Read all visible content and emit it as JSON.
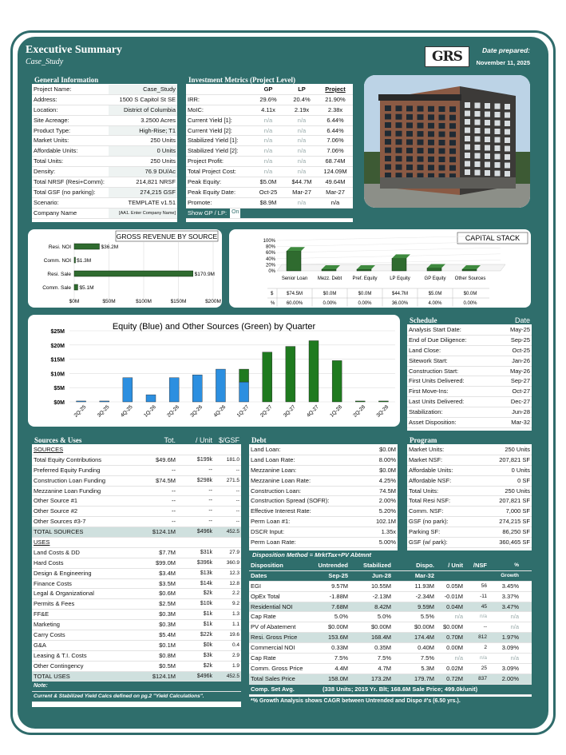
{
  "header": {
    "title": "Executive Summary",
    "subtitle": "Case_Study",
    "logo": "GRS",
    "date_label": "Date prepared:",
    "date": "November 11, 2025"
  },
  "general": {
    "title": "General Information",
    "rows": [
      [
        "Project Name:",
        "Case_Study"
      ],
      [
        "Address:",
        "1500 S Capitol St SE"
      ],
      [
        "Location:",
        "District of Columbia"
      ],
      [
        "Site Acreage:",
        "3.2500 Acres"
      ],
      [
        "Product Type:",
        "High-Rise; T1"
      ],
      [
        "Market Units:",
        "250 Units"
      ],
      [
        "Affordable Units:",
        "0 Units"
      ],
      [
        "Total Units:",
        "250 Units"
      ],
      [
        "Density:",
        "76.9 DU/Ac"
      ],
      [
        "Total NRSF (Resi+Comm):",
        "214,821 NRSF"
      ],
      [
        "Total GSF (no parking):",
        "274,215 GSF"
      ],
      [
        "Scenario:",
        "TEMPLATE v1.51"
      ],
      [
        "Company Name",
        "[AA1. Enter Company Name]"
      ]
    ]
  },
  "metrics": {
    "title": "Investment Metrics (Project Level)",
    "cols": [
      "GP",
      "LP",
      "Project"
    ],
    "rows": [
      [
        "IRR:",
        "29.6%",
        "20.4%",
        "21.90%"
      ],
      [
        "MoIC:",
        "4.11x",
        "2.19x",
        "2.38x"
      ],
      [
        "Current Yield [1]:",
        "n/a",
        "n/a",
        "6.44%"
      ],
      [
        "Current Yield [2]:",
        "n/a",
        "n/a",
        "6.44%"
      ],
      [
        "Stabilized Yield [1]:",
        "n/a",
        "n/a",
        "7.06%"
      ],
      [
        "Stabilized Yield [2]:",
        "n/a",
        "n/a",
        "7.06%"
      ],
      [
        "Project Profit:",
        "n/a",
        "n/a",
        "68.74M"
      ],
      [
        "Total Project Cost:",
        "n/a",
        "n/a",
        "124.09M"
      ],
      [
        "Peak Equity:",
        "$5.0M",
        "$44.7M",
        "49.64M"
      ],
      [
        "Peak Equity Date:",
        "Oct-25",
        "Mar-27",
        "Mar-27"
      ],
      [
        "Promote:",
        "$8.9M",
        "n/a",
        "n/a"
      ]
    ],
    "toggle_label": "Show GP / LP:",
    "toggle_value": "On"
  },
  "revenue_chart": {
    "title": "GROSS REVENUE BY SOURCE",
    "categories": [
      "Resi. NOI",
      "Comm. NOI",
      "Resi. Sale",
      "Comm. Sale"
    ],
    "values": [
      36.2,
      1.3,
      170.9,
      5.1
    ],
    "labels": [
      "$36.2M",
      "$1.3M",
      "$170.9M",
      "$5.1M"
    ],
    "ticks": [
      "$0M",
      "$50M",
      "$100M",
      "$150M",
      "$200M"
    ],
    "xlim": [
      0,
      200
    ]
  },
  "capital_chart": {
    "title": "CAPITAL STACK",
    "categories": [
      "Senior Loan",
      "Mezz. Debt",
      "Pref. Equity",
      "LP Equity",
      "GP Equity",
      "Other Sources"
    ],
    "pct_values": [
      60,
      0,
      0,
      36,
      4,
      0
    ],
    "dollar": [
      "$74.5M",
      "$0.0M",
      "$0.0M",
      "$44.7M",
      "$5.0M",
      "$0.0M"
    ],
    "pct": [
      "60.00%",
      "0.00%",
      "0.00%",
      "36.00%",
      "4.00%",
      "0.00%"
    ],
    "row_labels": [
      "$",
      "%"
    ],
    "ticks": [
      "100%",
      "80%",
      "60%",
      "40%",
      "20%",
      "0%"
    ]
  },
  "chart_data": {
    "type": "bar",
    "title": "Equity (Blue) and Other Sources (Green) by Quarter",
    "categories": [
      "2Q-25",
      "3Q-25",
      "4Q-25",
      "1Q-26",
      "2Q-26",
      "3Q-26",
      "4Q-26",
      "1Q-27",
      "2Q-27",
      "3Q-27",
      "4Q-27",
      "1Q-28",
      "2Q-28",
      "3Q-28"
    ],
    "series": [
      {
        "name": "Equity",
        "color": "#2c8fe0",
        "values": [
          0.3,
          0.3,
          8.5,
          2.5,
          8.5,
          9.5,
          11.5,
          7.0,
          0,
          0,
          0,
          0,
          0,
          0
        ]
      },
      {
        "name": "Other Sources",
        "color": "#1f7a1f",
        "values": [
          0,
          0,
          0,
          0,
          0,
          0,
          0,
          4.5,
          17.5,
          19.5,
          21.5,
          14.5,
          0.3,
          0.3
        ]
      }
    ],
    "ylim": [
      0,
      25
    ],
    "ticks": [
      "$0M",
      "$5M",
      "$10M",
      "$15M",
      "$20M",
      "$25M"
    ]
  },
  "schedule": {
    "title": "Schedule",
    "date_col": "Date",
    "rows": [
      [
        "Analysis Start Date:",
        "May-25"
      ],
      [
        "End of Due Diligence:",
        "Sep-25"
      ],
      [
        "Land Close:",
        "Oct-25"
      ],
      [
        "Sitework Start:",
        "Jan-26"
      ],
      [
        "Construction Start:",
        "May-26"
      ],
      [
        "First Units Delivered:",
        "Sep-27"
      ],
      [
        "First Move-Ins:",
        "Oct-27"
      ],
      [
        "Last Units Delivered:",
        "Dec-27"
      ],
      [
        "Stabilization:",
        "Jun-28"
      ],
      [
        "Asset Disposition:",
        "Mar-32"
      ]
    ]
  },
  "sources_uses": {
    "title": "Sources & Uses",
    "cols": [
      "Tot.",
      "/ Unit",
      "$/GSF"
    ],
    "sources_label": "SOURCES",
    "sources": [
      [
        "Total Equity Contributions",
        "$49.6M",
        "$199k",
        "181.0"
      ],
      [
        "Preferred Equity Funding",
        "--",
        "--",
        "--"
      ],
      [
        "Construction Loan Funding",
        "$74.5M",
        "$298k",
        "271.5"
      ],
      [
        "Mezzanine Loan Funding",
        "--",
        "--",
        "--"
      ],
      [
        "Other Source #1",
        "--",
        "--",
        "--"
      ],
      [
        "Other Source #2",
        "--",
        "--",
        "--"
      ],
      [
        "Other Sources #3-7",
        "--",
        "--",
        "--"
      ]
    ],
    "total_sources": [
      "TOTAL SOURCES",
      "$124.1M",
      "$496k",
      "452.5"
    ],
    "uses_label": "USES",
    "uses": [
      [
        "Land Costs & DD",
        "$7.7M",
        "$31k",
        "27.9"
      ],
      [
        "Hard Costs",
        "$99.0M",
        "$396k",
        "360.9"
      ],
      [
        "Design & Engineering",
        "$3.4M",
        "$13k",
        "12.3"
      ],
      [
        "Finance Costs",
        "$3.5M",
        "$14k",
        "12.8"
      ],
      [
        "Legal & Organizational",
        "$0.6M",
        "$2k",
        "2.2"
      ],
      [
        "Permits & Fees",
        "$2.5M",
        "$10k",
        "9.2"
      ],
      [
        "FF&E",
        "$0.3M",
        "$1k",
        "1.3"
      ],
      [
        "Marketing",
        "$0.3M",
        "$1k",
        "1.1"
      ],
      [
        "Carry Costs",
        "$5.4M",
        "$22k",
        "19.6"
      ],
      [
        "G&A",
        "$0.1M",
        "$0k",
        "0.4"
      ],
      [
        "Leasing & T.I. Costs",
        "$0.8M",
        "$3k",
        "2.9"
      ],
      [
        "Other Contingency",
        "$0.5M",
        "$2k",
        "1.9"
      ]
    ],
    "total_uses": [
      "TOTAL USES",
      "$124.1M",
      "$496k",
      "452.5"
    ],
    "note_label": "Note:",
    "note": "Current & Stabilized Yield Calcs defined on pg.2 \"Yield Calculations\"."
  },
  "debt": {
    "title": "Debt",
    "rows": [
      [
        "Land Loan:",
        "$0.0M"
      ],
      [
        "Land Loan Rate:",
        "8.00%"
      ],
      [
        "Mezzanine Loan:",
        "$0.0M"
      ],
      [
        "Mezzanine Loan Rate:",
        "4.25%"
      ],
      [
        "Construction Loan:",
        "74.5M"
      ],
      [
        "Construction Spread (SOFR):",
        "2.00%"
      ],
      [
        "Effective Interest Rate:",
        "5.20%"
      ],
      [
        "Perm Loan #1:",
        "102.1M"
      ],
      [
        "DSCR Input:",
        "1.35x"
      ],
      [
        "Perm Loan Rate:",
        "5.00%"
      ]
    ],
    "method": "Disposition Method = MrktTax+PV Abtmnt"
  },
  "program": {
    "title": "Program",
    "rows": [
      [
        "Market Units:",
        "250 Units"
      ],
      [
        "Market NSF:",
        "207,821 SF"
      ],
      [
        "Affordable Units:",
        "0 Units"
      ],
      [
        "Affordable NSF:",
        "0 SF"
      ],
      [
        "Total Units:",
        "250 Units"
      ],
      [
        "Total Resi NSF:",
        "207,821 SF"
      ],
      [
        "Comm. NSF:",
        "7,000 SF"
      ],
      [
        "GSF (no park):",
        "274,215 SF"
      ],
      [
        "Parking SF:",
        "86,250 SF"
      ],
      [
        "GSF (w/ park):",
        "360,465 SF"
      ]
    ]
  },
  "disposition": {
    "h1": [
      "Disposition",
      "Untrended",
      "Stabilized",
      "Dispo.",
      "/ Unit",
      "/NSF",
      "%"
    ],
    "h2": [
      "Dates",
      "Sep-25",
      "Jun-28",
      "Mar-32",
      "",
      "",
      "Growth"
    ],
    "rows": [
      [
        "EGI",
        "9.57M",
        "10.55M",
        "11.93M",
        "0.05M",
        "56",
        "3.45%"
      ],
      [
        "OpEx Total",
        "-1.88M",
        "-2.13M",
        "-2.34M",
        "-0.01M",
        "-11",
        "3.37%"
      ],
      [
        "Residential NOI",
        "7.68M",
        "8.42M",
        "9.59M",
        "0.04M",
        "45",
        "3.47%"
      ],
      [
        "Cap Rate",
        "5.0%",
        "5.0%",
        "5.5%",
        "n/a",
        "n/a",
        "n/a"
      ],
      [
        "PV of Abatement",
        "$0.00M",
        "$0.00M",
        "$0.00M",
        "$0.00M",
        "--",
        "n/a"
      ],
      [
        "Resi. Gross Price",
        "153.6M",
        "168.4M",
        "174.4M",
        "0.70M",
        "812",
        "1.97%"
      ],
      [
        "Commercial NOI",
        "0.33M",
        "0.35M",
        "0.40M",
        "0.00M",
        "2",
        "3.09%"
      ],
      [
        "Cap Rate",
        "7.5%",
        "7.5%",
        "7.5%",
        "n/a",
        "n/a",
        "n/a"
      ],
      [
        "Comm. Gross Price",
        "4.4M",
        "4.7M",
        "5.3M",
        "0.02M",
        "25",
        "3.09%"
      ],
      [
        "Total Sales Price",
        "158.0M",
        "173.2M",
        "179.7M",
        "0.72M",
        "837",
        "2.00%"
      ]
    ],
    "comp_label": "Comp. Set Avg.",
    "comp": "(338 Units; 2015 Yr. Blt; 168.6M Sale Price; 499.0k/unit)",
    "growth_note": "*% Growth Analysis shows CAGR between Untrended and Dispo #'s (6.50 yrs.)."
  }
}
